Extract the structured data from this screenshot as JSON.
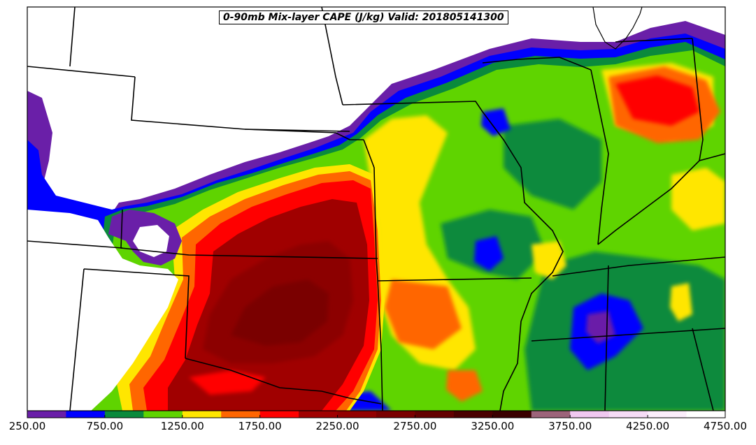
{
  "title": "0-90mb Mix-layer CAPE (J/kg) Valid: 201805141300",
  "colorbar": {
    "min": 250,
    "max": 4750,
    "step": 250,
    "colors": [
      "#6a1fa8",
      "#0000ff",
      "#0a8a3c",
      "#5fd400",
      "#ffe600",
      "#ff6600",
      "#ff0000",
      "#a00000",
      "#930000",
      "#7a0000",
      "#630000",
      "#4a0000",
      "#3a0000",
      "#9c647a",
      "#f0c8f0",
      "#f6dcf6",
      "#fbeefb",
      "#ffffff"
    ],
    "tick_labels": [
      "250.00",
      "750.00",
      "1250.00",
      "1750.00",
      "2250.00",
      "2750.00",
      "3250.00",
      "3750.00",
      "4250.00",
      "4750.00"
    ]
  }
}
